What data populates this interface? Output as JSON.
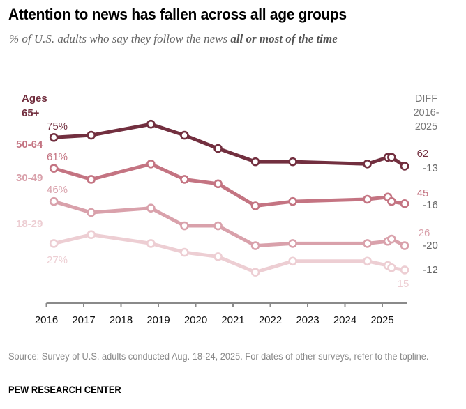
{
  "title": "Attention to news has fallen across all age groups",
  "subtitle_prefix": "% of U.S. adults who say they follow the news ",
  "subtitle_emphasis": "all or most of the time",
  "source": "Source: Survey of U.S. adults conducted Aug. 18-24, 2025. For dates of other surveys, refer to the topline.",
  "brand": "PEW RESEARCH CENTER",
  "chart_data": {
    "type": "line",
    "title": "Attention to news has fallen across all age groups",
    "ylabel": "% of U.S. adults who say they follow the news all or most of the time",
    "xlabel": "",
    "x_ticks": [
      "2016",
      "2017",
      "2018",
      "2019",
      "2020",
      "2021",
      "2022",
      "2023",
      "2024",
      "2025"
    ],
    "xlim": [
      2016,
      2025.7
    ],
    "ylim": [
      0,
      85
    ],
    "grid": false,
    "x": [
      2016.2,
      2017.2,
      2018.8,
      2019.7,
      2020.6,
      2021.6,
      2022.6,
      2024.6,
      2025.15,
      2025.25,
      2025.6
    ],
    "diff_header": [
      "DIFF",
      "2016-",
      "2025"
    ],
    "series": [
      {
        "name": "65+",
        "legend_label": [
          "Ages",
          "65+"
        ],
        "color": "#722F3F",
        "values": [
          75,
          76,
          81,
          76,
          70,
          64,
          64,
          63,
          66,
          66,
          62
        ],
        "start_label": "75%",
        "end_label": "62",
        "diff": "-13"
      },
      {
        "name": "50-64",
        "legend_label": [
          "50-64"
        ],
        "color": "#C47482",
        "values": [
          61,
          56,
          63,
          56,
          54,
          44,
          46,
          47,
          48,
          46,
          45
        ],
        "start_label": "61%",
        "end_label": "45",
        "diff": "-16"
      },
      {
        "name": "30-49",
        "legend_label": [
          "30-49"
        ],
        "color": "#D9A1AB",
        "values": [
          46,
          41,
          43,
          35,
          35,
          26,
          27,
          27,
          28,
          29,
          26
        ],
        "start_label": "46%",
        "end_label": "26",
        "diff": "-20"
      },
      {
        "name": "18-29",
        "legend_label": [
          "18-29"
        ],
        "color": "#EDCED3",
        "values": [
          27,
          31,
          27,
          23,
          21,
          14,
          19,
          19,
          17,
          16,
          15
        ],
        "start_label": "27%",
        "end_label": "15",
        "diff": "-12"
      }
    ],
    "legend_placement": "left"
  }
}
